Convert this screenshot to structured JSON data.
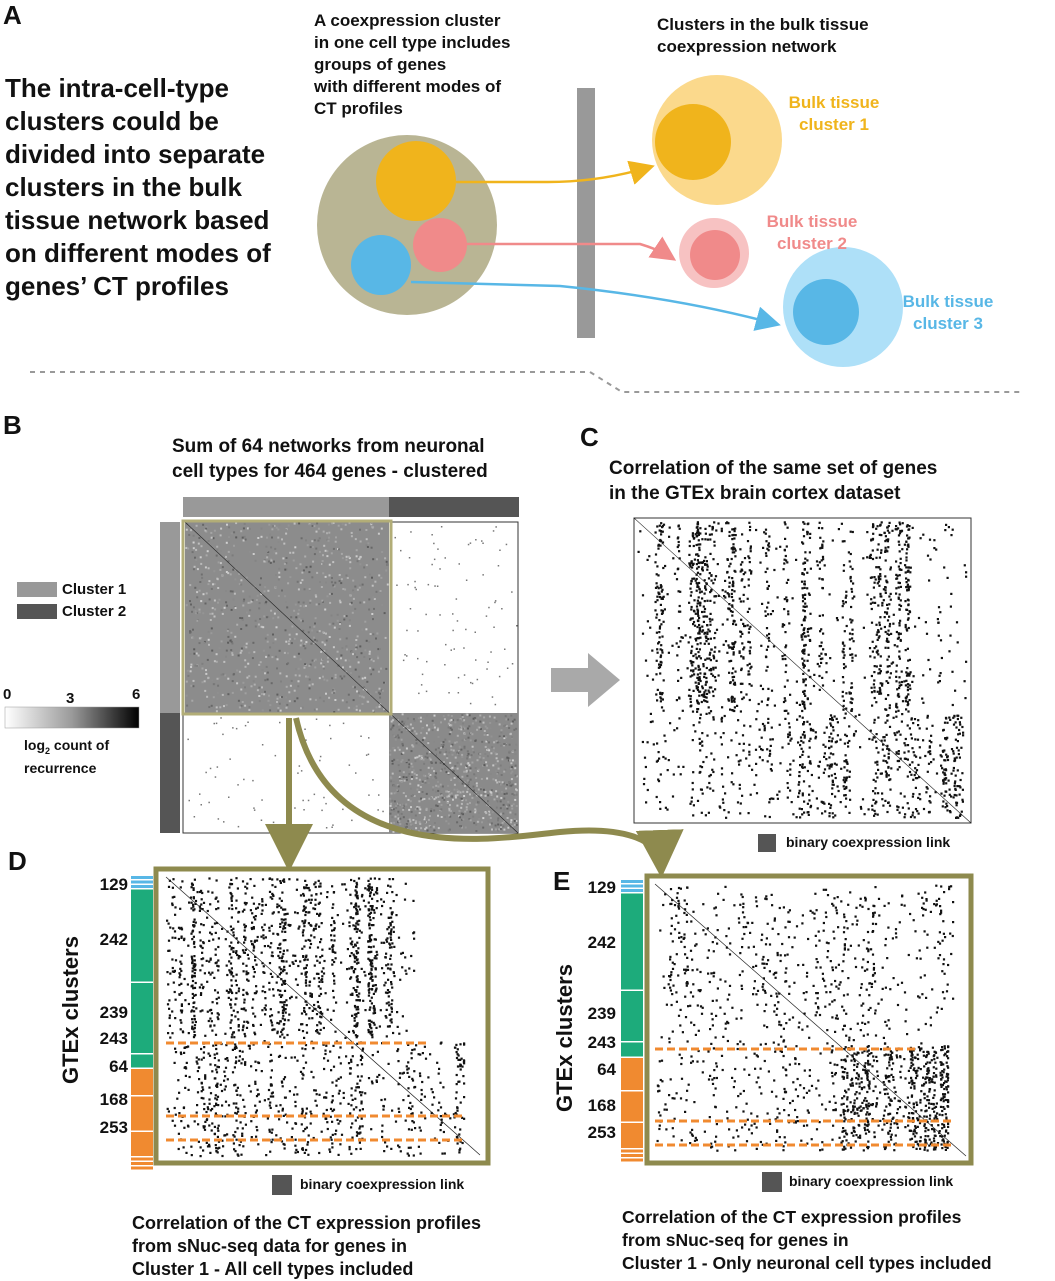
{
  "panel_a": {
    "letter": "A",
    "main_text": [
      "The intra-cell-type",
      "clusters could be",
      "divided into separate",
      "clusters in the bulk",
      "tissue network based",
      "on different modes of",
      "genes’ CT profiles"
    ],
    "middle_caption": [
      "A coexpression cluster",
      "in one cell type includes",
      "groups of genes",
      "with different modes of",
      "CT profiles"
    ],
    "right_caption": [
      "Clusters in the bulk tissue",
      "coexpression network"
    ],
    "bulk1": [
      "Bulk tissue",
      "cluster 1"
    ],
    "bulk2": [
      "Bulk tissue",
      "cluster 2"
    ],
    "bulk3": [
      "Bulk tissue",
      "cluster 3"
    ],
    "colors": {
      "gold": "#f0b41c",
      "pink": "#f08a8a",
      "blue": "#58b7e6",
      "olive": "#b9b594"
    }
  },
  "panel_b": {
    "letter": "B",
    "title": [
      "Sum of 64 networks from neuronal",
      "cell types for 464 genes - clustered"
    ],
    "legend": {
      "cluster1": "Cluster 1",
      "cluster2": "Cluster 2"
    },
    "colorbar": {
      "min": "0",
      "mid": "3",
      "max": "6",
      "label_prefix": "log",
      "label_sub": "2",
      "label_rest": " count of",
      "label_line2": "recurrence"
    }
  },
  "panel_c": {
    "letter": "C",
    "title": [
      "Correlation of the same set of genes",
      "in the GTEx brain cortex dataset"
    ],
    "legend": "binary coexpression link"
  },
  "panel_d": {
    "letter": "D",
    "ylabel": "GTEx clusters",
    "cluster_labels": [
      "129",
      "242",
      "239",
      "243",
      "64",
      "168",
      "253"
    ],
    "legend": "binary coexpression link",
    "caption": [
      "Correlation of the CT expression profiles",
      "from sNuc-seq data for genes in",
      "Cluster 1 - All cell types included"
    ]
  },
  "panel_e": {
    "letter": "E",
    "ylabel": "GTEx clusters",
    "cluster_labels": [
      "129",
      "242",
      "239",
      "243",
      "64",
      "168",
      "253"
    ],
    "legend": "binary coexpression link",
    "caption": [
      "Correlation of the CT expression profiles",
      "from sNuc-seq for genes in",
      "Cluster 1 - Only neuronal cell types included"
    ]
  }
}
